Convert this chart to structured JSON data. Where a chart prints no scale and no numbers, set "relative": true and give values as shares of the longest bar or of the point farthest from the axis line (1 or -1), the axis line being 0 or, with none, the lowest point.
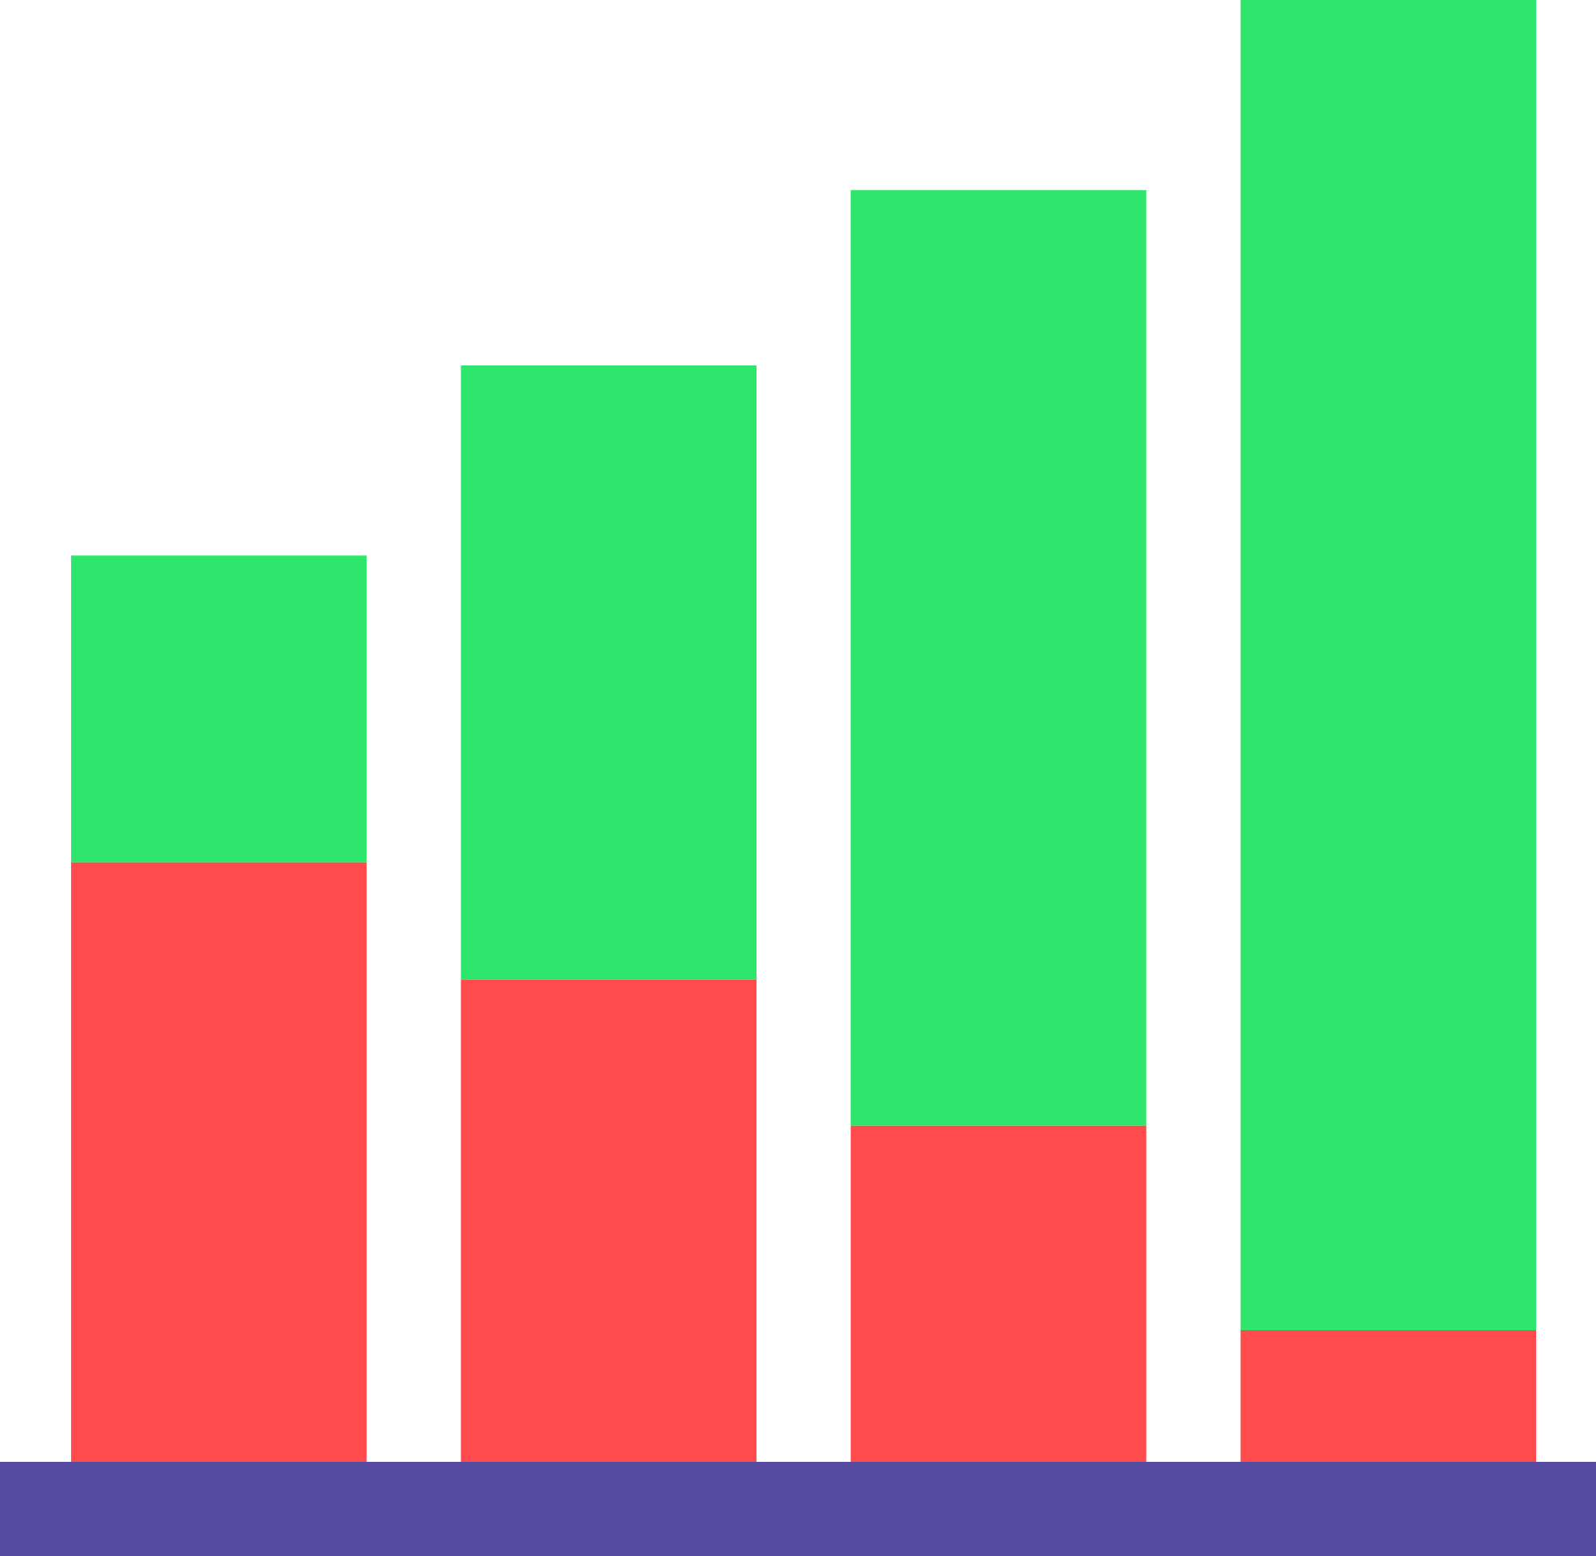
{
  "chart_data": {
    "type": "bar",
    "stacked": true,
    "relative": true,
    "categories": [
      null,
      null,
      null,
      null
    ],
    "series": [
      {
        "color": "#ff4b4b",
        "values": [
          0.41,
          0.33,
          0.23,
          0.09
        ]
      },
      {
        "color": "#2ee66b",
        "values": [
          0.21,
          0.42,
          0.64,
          0.91
        ]
      }
    ]
  }
}
